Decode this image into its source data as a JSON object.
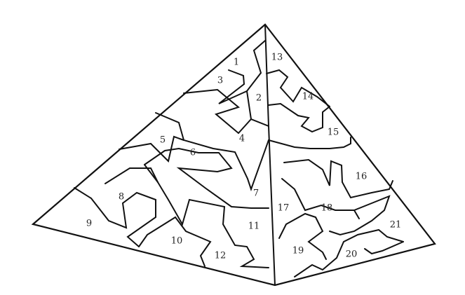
{
  "pieces": [
    {
      "id": "1",
      "label": "1"
    },
    {
      "id": "2",
      "label": "2"
    },
    {
      "id": "3",
      "label": "3"
    },
    {
      "id": "4",
      "label": "4"
    },
    {
      "id": "5",
      "label": "5"
    },
    {
      "id": "6",
      "label": "6"
    },
    {
      "id": "7",
      "label": "7"
    },
    {
      "id": "8",
      "label": "8"
    },
    {
      "id": "9",
      "label": "9"
    },
    {
      "id": "10",
      "label": "10"
    },
    {
      "id": "11",
      "label": "11"
    },
    {
      "id": "12",
      "label": "12"
    },
    {
      "id": "13",
      "label": "13"
    },
    {
      "id": "14",
      "label": "14"
    },
    {
      "id": "15",
      "label": "15"
    },
    {
      "id": "16",
      "label": "16"
    },
    {
      "id": "17",
      "label": "17"
    },
    {
      "id": "18",
      "label": "18"
    },
    {
      "id": "19",
      "label": "19"
    },
    {
      "id": "20",
      "label": "20"
    },
    {
      "id": "21",
      "label": "21"
    }
  ]
}
